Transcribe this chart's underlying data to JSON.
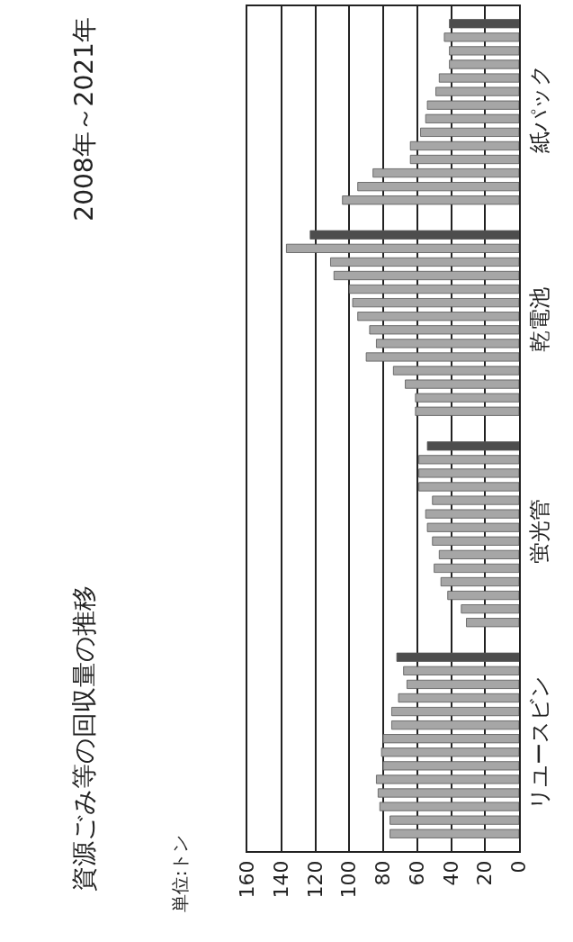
{
  "chart_data": {
    "type": "bar",
    "orientation": "horizontal",
    "title": "資源ごみ等の回収量の推移",
    "subtitle": "2008年～2021年",
    "annotations": [
      "単位:トン"
    ],
    "categories": [
      "紙パック",
      "乾電池",
      "蛍光管",
      "リユースビン"
    ],
    "series": [
      {
        "color": "#4d4d4d",
        "values": [
          41,
          123,
          54,
          72
        ]
      },
      {
        "color": "#a6a6a6",
        "values": [
          44,
          137,
          59,
          68
        ]
      },
      {
        "color": "#a6a6a6",
        "values": [
          41,
          111,
          59,
          66
        ]
      },
      {
        "color": "#a6a6a6",
        "values": [
          41,
          109,
          59,
          71
        ]
      },
      {
        "color": "#a6a6a6",
        "values": [
          47,
          100,
          51,
          75
        ]
      },
      {
        "color": "#a6a6a6",
        "values": [
          49,
          98,
          55,
          75
        ]
      },
      {
        "color": "#a6a6a6",
        "values": [
          54,
          95,
          54,
          80
        ]
      },
      {
        "color": "#a6a6a6",
        "values": [
          55,
          88,
          51,
          81
        ]
      },
      {
        "color": "#a6a6a6",
        "values": [
          58,
          84,
          47,
          80
        ]
      },
      {
        "color": "#a6a6a6",
        "values": [
          64,
          90,
          50,
          84
        ]
      },
      {
        "color": "#a6a6a6",
        "values": [
          64,
          74,
          46,
          83
        ]
      },
      {
        "color": "#a6a6a6",
        "values": [
          86,
          67,
          42,
          82
        ]
      },
      {
        "color": "#a6a6a6",
        "values": [
          95,
          61,
          34,
          76
        ]
      },
      {
        "color": "#a6a6a6",
        "values": [
          104,
          61,
          31,
          76
        ]
      }
    ],
    "xlim": [
      160,
      0
    ],
    "xticks": [
      0,
      20,
      40,
      60,
      80,
      100,
      120,
      140,
      160
    ],
    "grid": "x"
  }
}
